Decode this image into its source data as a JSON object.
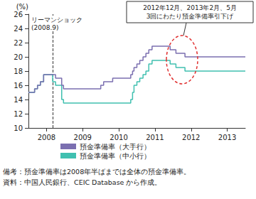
{
  "chart_data": {
    "type": "line",
    "y_label": "(%)",
    "x": [
      2008.0,
      2008.17,
      2008.25,
      2008.33,
      2008.42,
      2008.67,
      2008.75,
      2008.92,
      2008.97,
      2010.0,
      2010.08,
      2010.33,
      2010.83,
      2010.88,
      2010.92,
      2011.0,
      2011.08,
      2011.17,
      2011.25,
      2011.33,
      2011.42,
      2011.92,
      2012.08,
      2012.33,
      2014.0
    ],
    "series": [
      {
        "name": "預金準備率（大手行）",
        "color": "#7b6fb0",
        "values": [
          15,
          15.5,
          16,
          16.5,
          17.5,
          17.5,
          17,
          16,
          15.5,
          16,
          16.5,
          17,
          17.5,
          18,
          18.5,
          19,
          19.5,
          20,
          20.5,
          21,
          21.5,
          21,
          20.5,
          20,
          20
        ]
      },
      {
        "name": "預金準備率（中小行）",
        "color": "#40c0b0",
        "values": [
          15,
          15.5,
          16,
          16.5,
          17.5,
          16.5,
          16,
          14,
          13.5,
          13.5,
          13.5,
          13.5,
          14,
          15,
          16,
          16.5,
          17,
          17.5,
          18,
          19,
          19.5,
          19,
          18.5,
          18,
          18
        ]
      }
    ],
    "xlim": [
      2008,
      2014
    ],
    "xticks": [
      {
        "value": 2008.5,
        "label": "2008"
      },
      {
        "value": 2009.5,
        "label": "2009"
      },
      {
        "value": 2010.5,
        "label": "2010"
      },
      {
        "value": 2011.5,
        "label": "2011"
      },
      {
        "value": 2012.5,
        "label": "2012"
      },
      {
        "value": 2013.5,
        "label": "2013"
      }
    ],
    "ylim": [
      10,
      26
    ],
    "yticks": [
      10,
      12,
      14,
      16,
      18,
      20,
      22,
      24,
      26
    ],
    "grid": false,
    "legend": "bottom",
    "marker": "none",
    "annotations": [
      {
        "text": "リーマンショック\n(2008.9)",
        "x": 2008.67
      },
      {
        "text": "2012年12月、2013年2月、5月\n3回にわたり預金準備率引下げ"
      }
    ],
    "notes": [
      "備考：預金準備率は2008年半ばまでは全体の預金準備率。",
      "資料：中国人民銀行、CEIC Database から作成。"
    ]
  }
}
